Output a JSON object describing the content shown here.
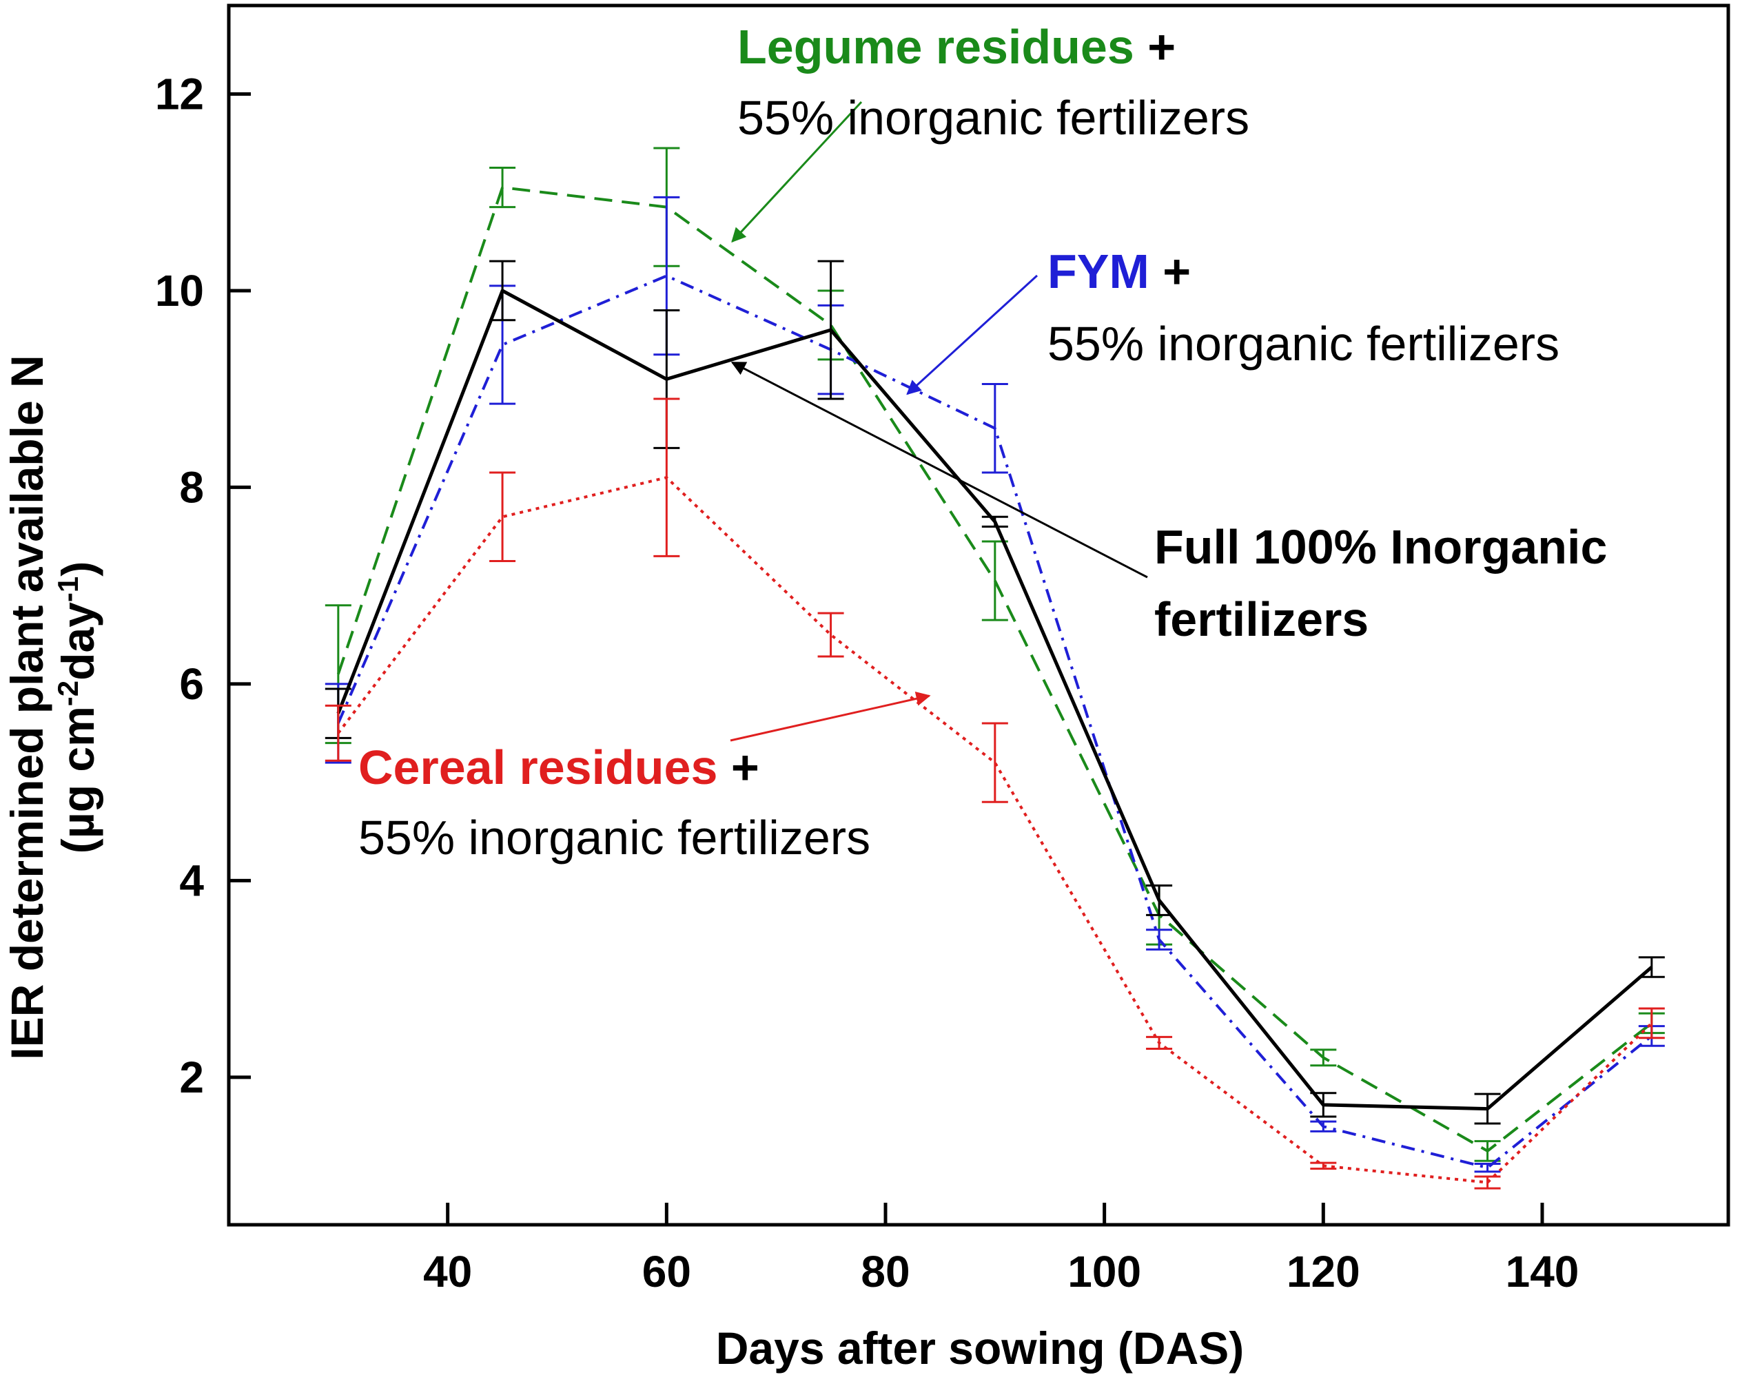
{
  "chart_data": {
    "type": "line",
    "title": "",
    "xlabel": "Days after sowing (DAS)",
    "ylabel_line1": "IER determined plant available N",
    "ylabel_line2": {
      "prefix": "(µg cm",
      "sup1": "-2",
      "middle": "day",
      "sup2": "-1",
      "suffix": ")"
    },
    "xlim": [
      20,
      157
    ],
    "ylim": [
      0.5,
      12.9
    ],
    "xticks": [
      40,
      60,
      80,
      100,
      120,
      140
    ],
    "yticks": [
      2,
      4,
      6,
      8,
      10,
      12
    ],
    "x": [
      30,
      45,
      60,
      75,
      90,
      105,
      120,
      135,
      150
    ],
    "series": [
      {
        "name": "Legume residues + 55% inorganic fertilizers",
        "color": "#1a8a1a",
        "dash": "dashed",
        "values": [
          6.1,
          11.05,
          10.85,
          9.65,
          7.05,
          3.65,
          2.2,
          1.25,
          2.55
        ],
        "errors": [
          0.7,
          0.2,
          0.6,
          0.35,
          0.4,
          0.3,
          0.08,
          0.1,
          0.1
        ]
      },
      {
        "name": "FYM + 55% inorganic fertilizers",
        "color": "#1f1fd6",
        "dash": "dashdot",
        "values": [
          5.6,
          9.45,
          10.15,
          9.4,
          8.6,
          3.4,
          1.5,
          1.08,
          2.42
        ],
        "errors": [
          0.4,
          0.6,
          0.8,
          0.45,
          0.45,
          0.1,
          0.05,
          0.04,
          0.1
        ]
      },
      {
        "name": "Full 100% Inorganic fertilizers",
        "color": "#000000",
        "dash": "solid",
        "values": [
          5.7,
          10.0,
          9.1,
          9.6,
          7.65,
          3.8,
          1.72,
          1.68,
          3.12
        ],
        "errors": [
          0.25,
          0.3,
          0.7,
          0.7,
          0.05,
          0.15,
          0.12,
          0.15,
          0.1
        ]
      },
      {
        "name": "Cereal residues + 55% inorganic fertilizers",
        "color": "#e01f1f",
        "dash": "dotted",
        "values": [
          5.5,
          7.7,
          8.1,
          6.5,
          5.2,
          2.35,
          1.1,
          0.93,
          2.55
        ],
        "errors": [
          0.28,
          0.45,
          0.8,
          0.22,
          0.4,
          0.06,
          0.03,
          0.06,
          0.15
        ]
      }
    ],
    "annotations": [
      {
        "id": "legume",
        "key": "Legume residues",
        "plus": " +",
        "line2": "55% inorganic fertilizers",
        "color": "#1a8a1a",
        "bold_second_line": false,
        "arrow_to": [
          66,
          10.5
        ]
      },
      {
        "id": "fym",
        "key": "FYM",
        "plus": " +",
        "line2": "55% inorganic fertilizers",
        "color": "#1f1fd6",
        "bold_second_line": false,
        "arrow_to": [
          82,
          8.95
        ]
      },
      {
        "id": "full",
        "key": "Full 100% Inorganic",
        "plus": "",
        "line2": "fertilizers",
        "color": "#000000",
        "bold_second_line": true,
        "arrow_to": [
          66,
          9.27
        ]
      },
      {
        "id": "cereal",
        "key": "Cereal residues",
        "plus": " +",
        "line2": "55% inorganic fertilizers",
        "color": "#e01f1f",
        "bold_second_line": false,
        "arrow_to": [
          84,
          5.88
        ]
      }
    ]
  }
}
